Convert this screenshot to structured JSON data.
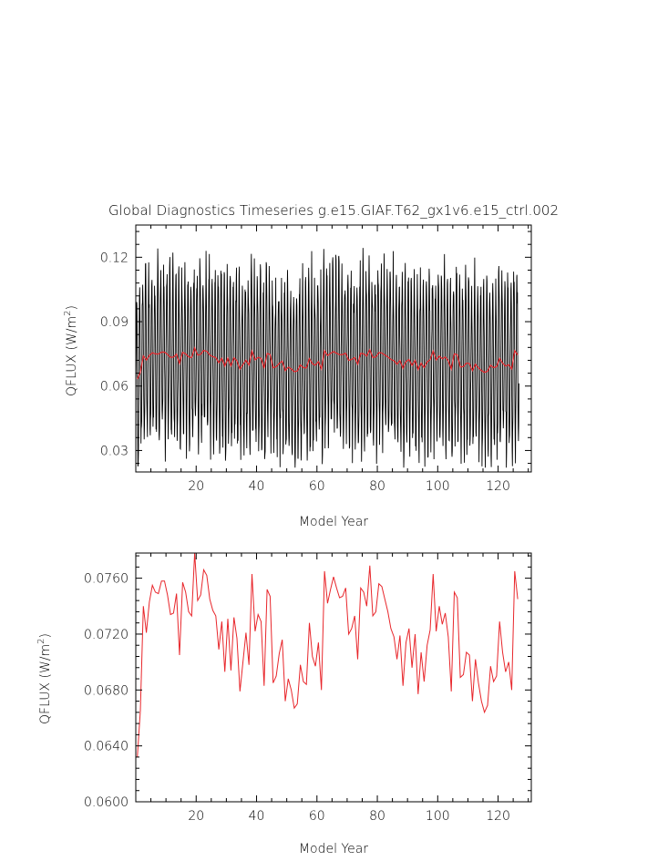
{
  "title": "Global Diagnostics Timeseries g.e15.GIAF.T62_gx1v6.e15_ctrl.002",
  "chart_data": [
    {
      "type": "line",
      "xlabel": "Model Year",
      "ylabel": "QFLUX (W/m²)",
      "ylabel_main": "QFLUX (W/m",
      "ylabel_sup": "2",
      "ylabel_close": ")",
      "xlim": [
        0,
        131
      ],
      "ylim": [
        0.02,
        0.135
      ],
      "xticks": [
        20,
        40,
        60,
        80,
        100,
        120
      ],
      "xtick_labels": [
        "20",
        "40",
        "60",
        "80",
        "100",
        "120"
      ],
      "yticks": [
        0.03,
        0.06,
        0.09,
        0.12
      ],
      "ytick_labels": [
        "0.03",
        "0.06",
        "0.09",
        "0.12"
      ],
      "series": [
        {
          "name": "",
          "resolution": "monthly",
          "color": "#000000",
          "x_start": 0.04,
          "x_step": 0.0833,
          "mean_series": "annual"
        },
        {
          "name": "",
          "resolution": "annual",
          "color": "#e8262b"
        }
      ]
    },
    {
      "type": "line",
      "xlabel": "Model Year",
      "ylabel": "QFLUX (W/m²)",
      "ylabel_main": "QFLUX (W/m",
      "ylabel_sup": "2",
      "ylabel_close": ")",
      "xlim": [
        0,
        131
      ],
      "ylim": [
        0.06,
        0.0778
      ],
      "xticks": [
        20,
        40,
        60,
        80,
        100,
        120
      ],
      "xtick_labels": [
        "20",
        "40",
        "60",
        "80",
        "100",
        "120"
      ],
      "yticks": [
        0.06,
        0.064,
        0.068,
        0.072,
        0.076
      ],
      "ytick_labels": [
        "0.0600",
        "0.0640",
        "0.0680",
        "0.0720",
        "0.0760"
      ],
      "series": [
        {
          "name": "",
          "color": "#e8262b",
          "x_start": 0.5,
          "x_step": 1,
          "values": [
            0.0632,
            0.0665,
            0.074,
            0.0721,
            0.0743,
            0.0755,
            0.075,
            0.0749,
            0.0758,
            0.0758,
            0.0748,
            0.0734,
            0.0735,
            0.0749,
            0.0705,
            0.0757,
            0.075,
            0.0736,
            0.0733,
            0.0778,
            0.0744,
            0.0748,
            0.0766,
            0.0762,
            0.0745,
            0.0737,
            0.0733,
            0.0709,
            0.0729,
            0.0693,
            0.0731,
            0.0694,
            0.0732,
            0.0717,
            0.0679,
            0.07,
            0.0721,
            0.0698,
            0.0763,
            0.0722,
            0.0734,
            0.0729,
            0.0683,
            0.0752,
            0.0747,
            0.0685,
            0.069,
            0.0706,
            0.0716,
            0.0672,
            0.0688,
            0.068,
            0.0667,
            0.067,
            0.0698,
            0.0686,
            0.0684,
            0.0728,
            0.0704,
            0.0697,
            0.0714,
            0.068,
            0.0765,
            0.0742,
            0.0752,
            0.0761,
            0.0753,
            0.0746,
            0.0747,
            0.0753,
            0.072,
            0.0724,
            0.0733,
            0.0702,
            0.0753,
            0.075,
            0.074,
            0.0769,
            0.0733,
            0.0736,
            0.0756,
            0.0754,
            0.0745,
            0.0736,
            0.0724,
            0.0718,
            0.0702,
            0.0719,
            0.0683,
            0.0714,
            0.0724,
            0.0696,
            0.072,
            0.0677,
            0.0707,
            0.0686,
            0.0712,
            0.0723,
            0.0763,
            0.0722,
            0.074,
            0.0727,
            0.0735,
            0.0718,
            0.0679,
            0.075,
            0.0746,
            0.0689,
            0.0691,
            0.0707,
            0.0705,
            0.0672,
            0.0702,
            0.0685,
            0.0672,
            0.0664,
            0.0669,
            0.0697,
            0.0686,
            0.069,
            0.0729,
            0.0707,
            0.0693,
            0.07,
            0.068,
            0.0765,
            0.0745
          ]
        }
      ]
    }
  ]
}
